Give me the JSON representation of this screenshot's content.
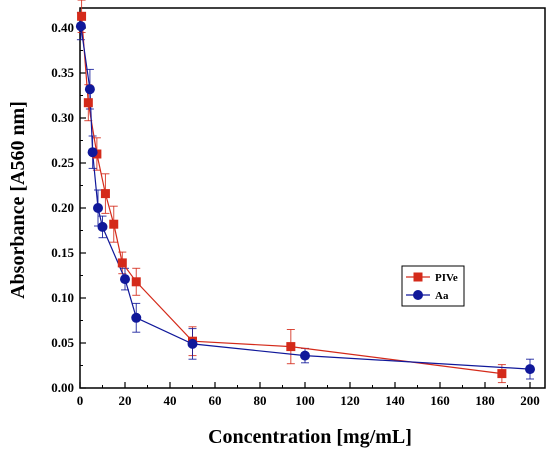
{
  "chart_data": {
    "type": "scatter",
    "xlabel": "Concentration [mg/mL]",
    "ylabel": "Absorbance [A560 nm]",
    "xlim": [
      0,
      200
    ],
    "ylim": [
      0,
      0.42
    ],
    "xticks": [
      "0",
      "20",
      "40",
      "60",
      "80",
      "100",
      "120",
      "140",
      "160",
      "180",
      "200"
    ],
    "yticks": [
      "0.00",
      "0.05",
      "0.10",
      "0.15",
      "0.20",
      "0.25",
      "0.30",
      "0.35",
      "0.40"
    ],
    "grid": false,
    "legend_position": "right",
    "series": [
      {
        "name": "PIVe",
        "color": "#d42a1a",
        "marker": "square",
        "x": [
          0.7,
          3.7,
          7.5,
          11.3,
          15,
          18.8,
          25,
          50,
          93.7,
          187.5
        ],
        "y": [
          0.413,
          0.317,
          0.26,
          0.216,
          0.182,
          0.139,
          0.118,
          0.052,
          0.046,
          0.016
        ],
        "err": [
          0.018,
          0.02,
          0.018,
          0.022,
          0.02,
          0.012,
          0.015,
          0.016,
          0.019,
          0.01
        ]
      },
      {
        "name": "Aa",
        "color": "#10189a",
        "marker": "circle",
        "x": [
          0.4,
          4.4,
          5.6,
          8,
          10,
          20,
          25,
          50,
          100,
          200
        ],
        "y": [
          0.402,
          0.332,
          0.262,
          0.2,
          0.179,
          0.121,
          0.078,
          0.049,
          0.036,
          0.021
        ],
        "err": [
          0.015,
          0.022,
          0.018,
          0.02,
          0.012,
          0.012,
          0.016,
          0.017,
          0.008,
          0.011
        ]
      }
    ]
  }
}
